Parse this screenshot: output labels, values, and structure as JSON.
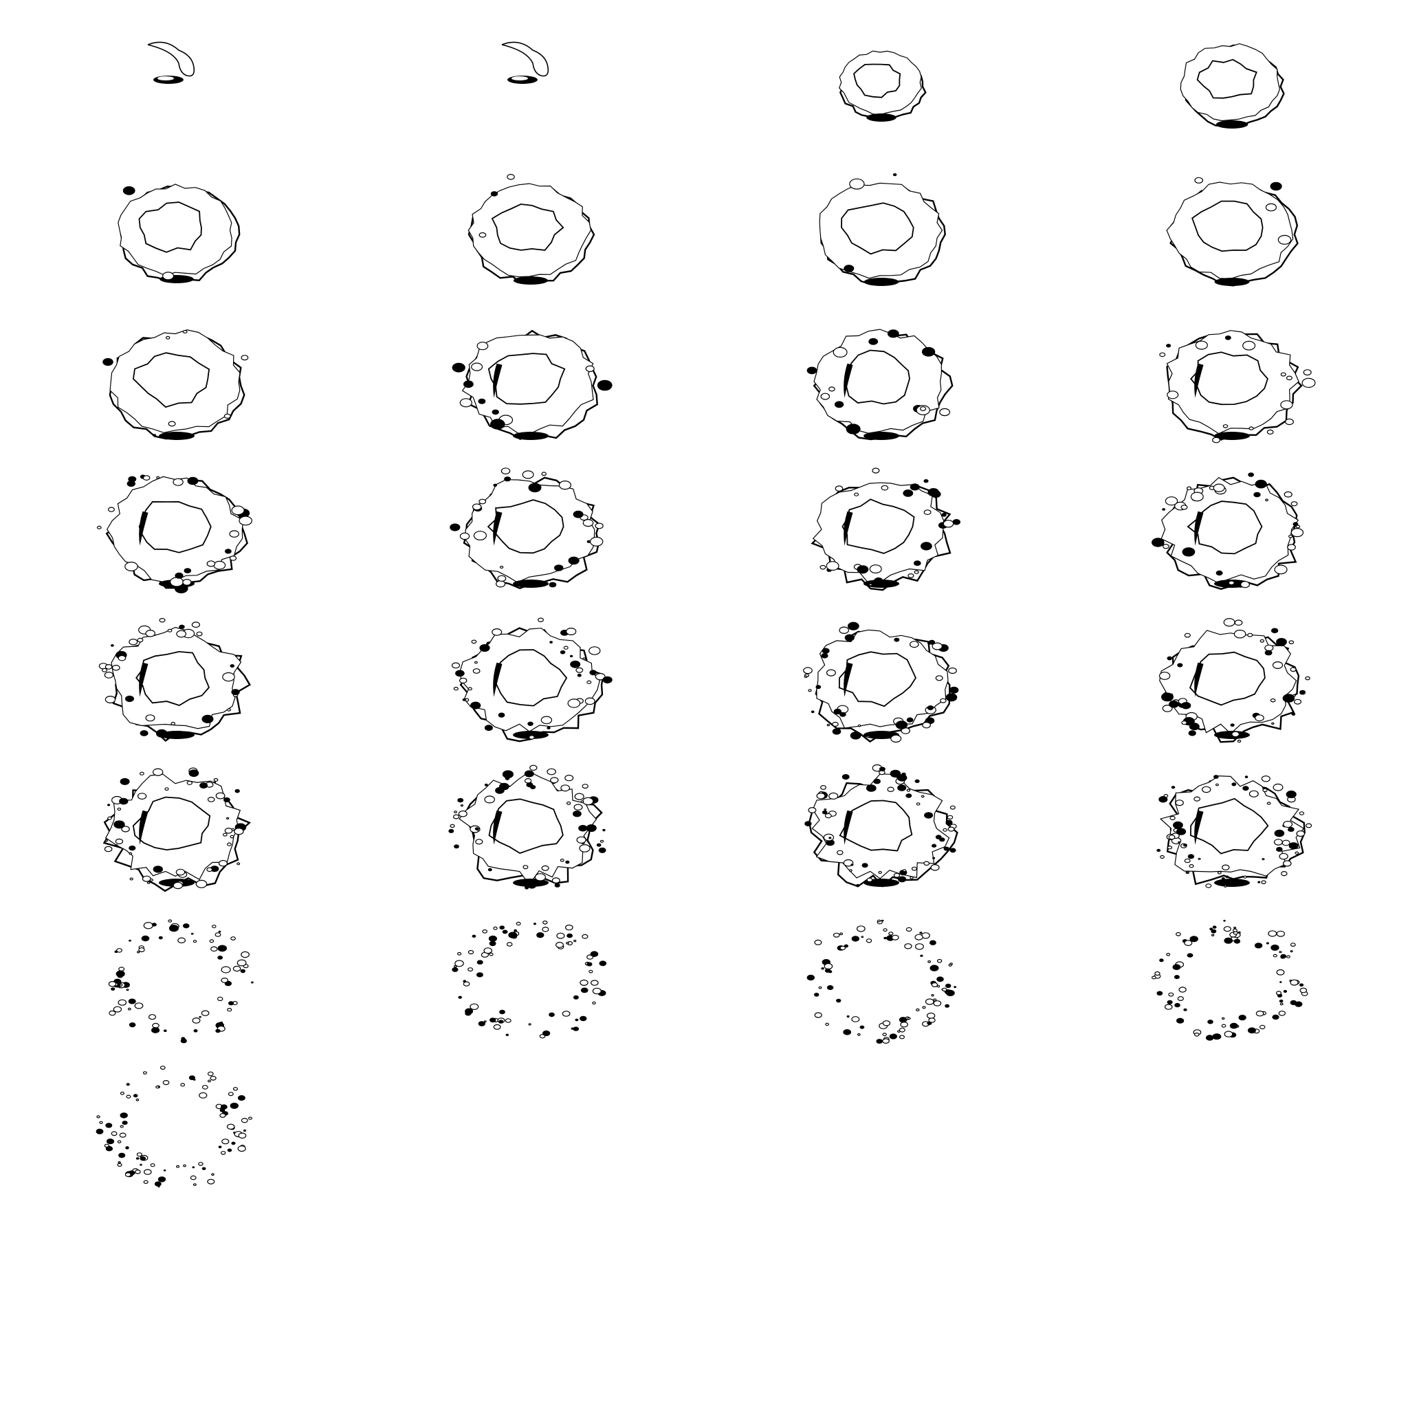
{
  "sprite_sheet": {
    "background": "#ffffff",
    "ink": "#000000",
    "subject": "smoke-ring-dissipation",
    "columns": 4,
    "frames": [
      {
        "index": 1,
        "stage": "wisp",
        "ring": 0.1,
        "breakup": 0.0
      },
      {
        "index": 2,
        "stage": "wisp",
        "ring": 0.1,
        "breakup": 0.0
      },
      {
        "index": 3,
        "stage": "forming",
        "ring": 0.3,
        "breakup": 0.0
      },
      {
        "index": 4,
        "stage": "forming",
        "ring": 0.55,
        "breakup": 0.0
      },
      {
        "index": 5,
        "stage": "ring",
        "ring": 0.8,
        "breakup": 0.02
      },
      {
        "index": 6,
        "stage": "ring",
        "ring": 0.85,
        "breakup": 0.03
      },
      {
        "index": 7,
        "stage": "ring",
        "ring": 0.9,
        "breakup": 0.03
      },
      {
        "index": 8,
        "stage": "ring",
        "ring": 0.9,
        "breakup": 0.04
      },
      {
        "index": 9,
        "stage": "ring",
        "ring": 1.0,
        "breakup": 0.08
      },
      {
        "index": 10,
        "stage": "ring",
        "ring": 1.0,
        "breakup": 0.12
      },
      {
        "index": 11,
        "stage": "ring",
        "ring": 1.0,
        "breakup": 0.14
      },
      {
        "index": 12,
        "stage": "ring",
        "ring": 1.0,
        "breakup": 0.18
      },
      {
        "index": 13,
        "stage": "churning",
        "ring": 1.0,
        "breakup": 0.25
      },
      {
        "index": 14,
        "stage": "churning",
        "ring": 1.0,
        "breakup": 0.28
      },
      {
        "index": 15,
        "stage": "churning",
        "ring": 1.0,
        "breakup": 0.3
      },
      {
        "index": 16,
        "stage": "churning",
        "ring": 1.0,
        "breakup": 0.33
      },
      {
        "index": 17,
        "stage": "churning",
        "ring": 1.0,
        "breakup": 0.38
      },
      {
        "index": 18,
        "stage": "churning",
        "ring": 1.0,
        "breakup": 0.42
      },
      {
        "index": 19,
        "stage": "churning",
        "ring": 1.0,
        "breakup": 0.45
      },
      {
        "index": 20,
        "stage": "churning",
        "ring": 1.0,
        "breakup": 0.48
      },
      {
        "index": 21,
        "stage": "breaking",
        "ring": 1.0,
        "breakup": 0.6
      },
      {
        "index": 22,
        "stage": "breaking",
        "ring": 1.0,
        "breakup": 0.63
      },
      {
        "index": 23,
        "stage": "breaking",
        "ring": 1.0,
        "breakup": 0.68
      },
      {
        "index": 24,
        "stage": "breaking",
        "ring": 1.0,
        "breakup": 0.72
      },
      {
        "index": 25,
        "stage": "scattering",
        "ring": 1.0,
        "breakup": 0.8
      },
      {
        "index": 26,
        "stage": "scattering",
        "ring": 1.0,
        "breakup": 0.85
      },
      {
        "index": 27,
        "stage": "scattering",
        "ring": 1.0,
        "breakup": 0.92
      },
      {
        "index": 28,
        "stage": "scattering",
        "ring": 1.0,
        "breakup": 0.93
      },
      {
        "index": 29,
        "stage": "fading",
        "ring": 1.0,
        "breakup": 0.98
      }
    ]
  }
}
